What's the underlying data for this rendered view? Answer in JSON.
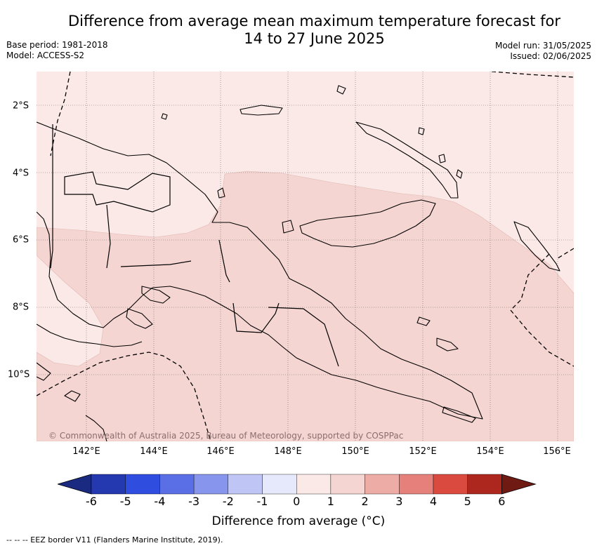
{
  "title": {
    "line1": "Difference from average mean maximum temperature forecast for",
    "line2": "14 to 27 June 2025"
  },
  "meta_left": {
    "base_period": "Base period: 1981-2018",
    "model": "Model: ACCESS-S2"
  },
  "meta_right": {
    "model_run": "Model run: 31/05/2025",
    "issued": "Issued: 02/06/2025"
  },
  "map": {
    "lat_labels": [
      "2°S",
      "4°S",
      "6°S",
      "8°S",
      "10°S"
    ],
    "lon_labels": [
      "142°E",
      "144°E",
      "146°E",
      "148°E",
      "150°E",
      "152°E",
      "154°E",
      "156°E"
    ],
    "credit": "© Commonwealth of Australia 2025, Bureau of Meteorology, supported by COSPPac",
    "fill_colors": {
      "zero_to_one": "#fbe9e7",
      "one_to_two": "#f5d5d1",
      "coastline": "#000000"
    }
  },
  "colorbar": {
    "ticks": [
      "-6",
      "-5",
      "-4",
      "-3",
      "-2",
      "-1",
      "0",
      "1",
      "2",
      "3",
      "4",
      "5",
      "6"
    ],
    "colors": [
      "#1a2a80",
      "#2438b0",
      "#2f4ee0",
      "#5a6fe6",
      "#8895ec",
      "#bfc5f4",
      "#e6e9fb",
      "#fbe9e7",
      "#f5d5d1",
      "#eeaca6",
      "#e5817a",
      "#da4a3e",
      "#ad271f",
      "#701a14"
    ],
    "label": "Difference from average (°C)"
  },
  "footnote": "-- -- -- EEZ border V11 (Flanders Marine Institute, 2019)."
}
